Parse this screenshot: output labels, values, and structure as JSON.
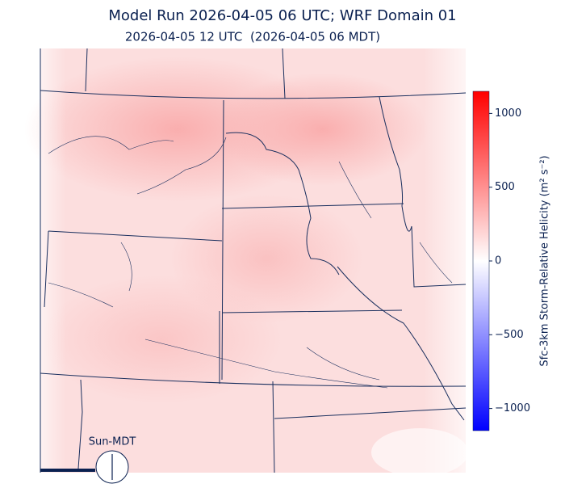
{
  "header": {
    "title": "Model Run 2026-04-05 06 UTC; WRF Domain 01",
    "subtitle": "2026-04-05 12 UTC  (2026-04-05 06 MDT)"
  },
  "colorbar": {
    "label": "Sfc-3km Storm-Relative Helicity (m² s⁻²)",
    "lim": [
      -1150,
      1150
    ],
    "ticks": [
      {
        "value": -1000,
        "label": "−1000"
      },
      {
        "value": -500,
        "label": "−500"
      },
      0,
      500,
      1000
    ],
    "colors": [
      "#0000ff",
      "#ffffff",
      "#ff0000"
    ]
  },
  "sun_clock": {
    "label": "Sun-MDT"
  }
}
